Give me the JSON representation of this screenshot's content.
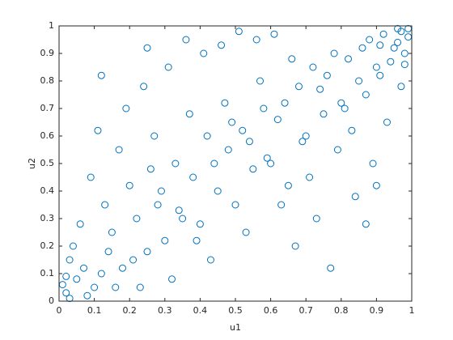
{
  "chart_data": {
    "type": "scatter",
    "xlabel": "u1",
    "ylabel": "u2",
    "color": "#0072bd",
    "marker": "open-circle",
    "xlim": [
      0,
      1
    ],
    "ylim": [
      0,
      1
    ],
    "xticks": [
      0,
      0.1,
      0.2,
      0.3,
      0.4,
      0.5,
      0.6,
      0.7,
      0.8,
      0.9,
      1
    ],
    "yticks": [
      0,
      0.1,
      0.2,
      0.3,
      0.4,
      0.5,
      0.6,
      0.7,
      0.8,
      0.9,
      1
    ],
    "x": [
      0.02,
      0.05,
      0.08,
      0.03,
      0.12,
      0.15,
      0.1,
      0.18,
      0.22,
      0.25,
      0.2,
      0.28,
      0.3,
      0.33,
      0.35,
      0.38,
      0.4,
      0.42,
      0.45,
      0.48,
      0.5,
      0.52,
      0.55,
      0.58,
      0.6,
      0.62,
      0.65,
      0.68,
      0.7,
      0.72,
      0.75,
      0.78,
      0.8,
      0.82,
      0.85,
      0.88,
      0.9,
      0.92,
      0.95,
      0.97,
      0.99,
      0.98,
      0.96,
      0.94,
      0.91,
      0.87,
      0.83,
      0.79,
      0.76,
      0.71,
      0.66,
      0.63,
      0.57,
      0.53,
      0.47,
      0.43,
      0.37,
      0.32,
      0.27,
      0.23,
      0.17,
      0.13,
      0.09,
      0.06,
      0.04,
      0.01,
      0.11,
      0.19,
      0.24,
      0.31,
      0.36,
      0.41,
      0.46,
      0.51,
      0.56,
      0.61,
      0.67,
      0.73,
      0.77,
      0.84,
      0.89,
      0.93,
      0.97,
      0.03,
      0.07,
      0.14,
      0.21,
      0.29,
      0.34,
      0.44,
      0.54,
      0.64,
      0.74,
      0.86,
      0.96,
      0.99,
      0.02,
      0.16,
      0.26,
      0.39,
      0.49,
      0.59,
      0.69,
      0.81,
      0.91,
      0.98,
      0.9,
      0.87,
      0.12,
      0.25
    ],
    "values": [
      0.03,
      0.08,
      0.02,
      0.15,
      0.1,
      0.25,
      0.05,
      0.12,
      0.3,
      0.18,
      0.42,
      0.35,
      0.22,
      0.5,
      0.3,
      0.45,
      0.28,
      0.6,
      0.4,
      0.55,
      0.35,
      0.62,
      0.48,
      0.7,
      0.5,
      0.66,
      0.42,
      0.78,
      0.6,
      0.85,
      0.68,
      0.9,
      0.72,
      0.88,
      0.8,
      0.95,
      0.85,
      0.97,
      0.92,
      0.98,
      0.96,
      0.9,
      0.99,
      0.87,
      0.93,
      0.75,
      0.62,
      0.55,
      0.82,
      0.45,
      0.88,
      0.35,
      0.8,
      0.25,
      0.72,
      0.15,
      0.68,
      0.08,
      0.6,
      0.05,
      0.55,
      0.35,
      0.45,
      0.28,
      0.2,
      0.06,
      0.62,
      0.7,
      0.78,
      0.85,
      0.95,
      0.9,
      0.93,
      0.98,
      0.95,
      0.97,
      0.2,
      0.3,
      0.12,
      0.38,
      0.5,
      0.65,
      0.78,
      0.01,
      0.12,
      0.18,
      0.15,
      0.4,
      0.33,
      0.5,
      0.58,
      0.72,
      0.77,
      0.92,
      0.94,
      0.99,
      0.09,
      0.05,
      0.48,
      0.22,
      0.65,
      0.52,
      0.58,
      0.7,
      0.82,
      0.86,
      0.42,
      0.28,
      0.82,
      0.92
    ]
  }
}
